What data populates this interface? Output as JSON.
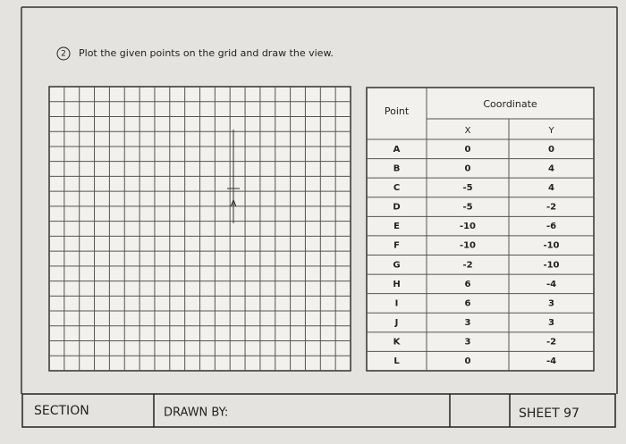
{
  "instruction": {
    "number": "2",
    "text": "Plot the given points on the grid and draw the view."
  },
  "grid": {
    "origin_label": "A"
  },
  "table": {
    "point_header": "Point",
    "coordinate_header": "Coordinate",
    "x_header": "X",
    "y_header": "Y",
    "rows": [
      [
        "A",
        "0",
        "0"
      ],
      [
        "B",
        "0",
        "4"
      ],
      [
        "C",
        "-5",
        "4"
      ],
      [
        "D",
        "-5",
        "-2"
      ],
      [
        "E",
        "-10",
        "-6"
      ],
      [
        "F",
        "-10",
        "-10"
      ],
      [
        "G",
        "-2",
        "-10"
      ],
      [
        "H",
        "6",
        "-4"
      ],
      [
        "I",
        "6",
        "3"
      ],
      [
        "J",
        "3",
        "3"
      ],
      [
        "K",
        "3",
        "-2"
      ],
      [
        "L",
        "0",
        "-4"
      ]
    ]
  },
  "footer": {
    "section": "SECTION",
    "drawn_by": "DRAWN BY:",
    "sheet": "SHEET 97"
  }
}
